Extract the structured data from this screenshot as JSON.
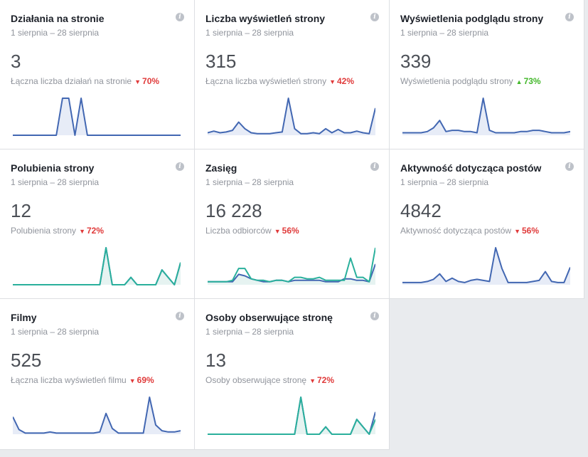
{
  "cards": [
    {
      "title": "Działania na stronie",
      "date": "1 sierpnia – 28 sierpnia",
      "value": "3",
      "subtitle": "Łączna liczba działań na stronie",
      "change": "70%",
      "direction": "down",
      "lines": [
        {
          "color": "#4267b2",
          "values": [
            0,
            0,
            0,
            0,
            0,
            0,
            0,
            0,
            1,
            1,
            0,
            1,
            0,
            0,
            0,
            0,
            0,
            0,
            0,
            0,
            0,
            0,
            0,
            0,
            0,
            0,
            0,
            0
          ]
        }
      ],
      "fill": "#e7ecf7"
    },
    {
      "title": "Liczba wyświetleń strony",
      "date": "1 sierpnia – 28 sierpnia",
      "value": "315",
      "subtitle": "Łączna liczba wyświetleń strony",
      "change": "42%",
      "direction": "down",
      "lines": [
        {
          "color": "#4267b2",
          "values": [
            3,
            5,
            3,
            4,
            6,
            16,
            8,
            3,
            2,
            2,
            2,
            3,
            4,
            45,
            8,
            2,
            2,
            3,
            2,
            8,
            3,
            7,
            3,
            3,
            5,
            3,
            2,
            33
          ]
        }
      ],
      "fill": "#e7ecf7"
    },
    {
      "title": "Wyświetlenia podglądu strony",
      "date": "1 sierpnia – 28 sierpnia",
      "value": "339",
      "subtitle": "Wyświetlenia podglądu strony",
      "change": "73%",
      "direction": "up",
      "lines": [
        {
          "color": "#4267b2",
          "values": [
            2,
            2,
            2,
            2,
            3,
            6,
            12,
            3,
            4,
            4,
            3,
            3,
            2,
            30,
            4,
            2,
            2,
            2,
            2,
            3,
            3,
            4,
            4,
            3,
            2,
            2,
            2,
            3
          ]
        }
      ],
      "fill": "#e7ecf7"
    },
    {
      "title": "Polubienia strony",
      "date": "1 sierpnia – 28 sierpnia",
      "value": "12",
      "subtitle": "Polubienia strony",
      "change": "72%",
      "direction": "down",
      "lines": [
        {
          "color": "#4267b2",
          "values": [
            0,
            0,
            0,
            0,
            0,
            0,
            0,
            0,
            0,
            0,
            0,
            0,
            0,
            0,
            0,
            5,
            0,
            0,
            0,
            1,
            0,
            0,
            0,
            0,
            2,
            1,
            0,
            3
          ]
        },
        {
          "color": "#2ab09c",
          "values": [
            0,
            0,
            0,
            0,
            0,
            0,
            0,
            0,
            0,
            0,
            0,
            0,
            0,
            0,
            0,
            5,
            0,
            0,
            0,
            1,
            0,
            0,
            0,
            0,
            2,
            1,
            0,
            3
          ]
        }
      ],
      "fill": "#e6f3f1"
    },
    {
      "title": "Zasięg",
      "date": "1 sierpnia – 28 sierpnia",
      "value": "16 228",
      "subtitle": "Liczba odbiorców",
      "change": "56%",
      "direction": "down",
      "lines": [
        {
          "color": "#4267b2",
          "values": [
            2,
            2,
            2,
            2,
            2,
            7,
            6,
            4,
            3,
            2,
            2,
            3,
            3,
            2,
            3,
            3,
            3,
            3,
            3,
            2,
            2,
            2,
            4,
            4,
            3,
            3,
            2,
            14
          ]
        },
        {
          "color": "#2ab09c",
          "values": [
            2,
            2,
            2,
            2,
            3,
            11,
            11,
            4,
            3,
            3,
            2,
            3,
            3,
            2,
            5,
            5,
            4,
            4,
            5,
            3,
            3,
            3,
            3,
            18,
            5,
            5,
            2,
            25
          ]
        }
      ],
      "fill": "#e6f3f1"
    },
    {
      "title": "Aktywność dotycząca postów",
      "date": "1 sierpnia – 28 sierpnia",
      "value": "4842",
      "subtitle": "Aktywność dotycząca postów",
      "change": "56%",
      "direction": "down",
      "lines": [
        {
          "color": "#4267b2",
          "values": [
            2,
            2,
            2,
            2,
            3,
            5,
            10,
            3,
            6,
            3,
            2,
            4,
            5,
            4,
            3,
            34,
            15,
            2,
            2,
            2,
            2,
            3,
            4,
            12,
            3,
            2,
            2,
            16
          ]
        }
      ],
      "fill": "#e7ecf7"
    },
    {
      "title": "Filmy",
      "date": "1 sierpnia – 28 sierpnia",
      "value": "525",
      "subtitle": "Łączna liczba wyświetleń filmu",
      "change": "69%",
      "direction": "down",
      "lines": [
        {
          "color": "#4267b2",
          "values": [
            15,
            4,
            1,
            1,
            1,
            1,
            2,
            1,
            1,
            1,
            1,
            1,
            1,
            1,
            2,
            18,
            5,
            1,
            1,
            1,
            1,
            1,
            32,
            8,
            3,
            2,
            2,
            3
          ]
        }
      ],
      "fill": "#e7ecf7"
    },
    {
      "title": "Osoby obserwujące stronę",
      "date": "1 sierpnia – 28 sierpnia",
      "value": "13",
      "subtitle": "Osoby obserwujące stronę",
      "change": "72%",
      "direction": "down",
      "lines": [
        {
          "color": "#4267b2",
          "values": [
            0,
            0,
            0,
            0,
            0,
            0,
            0,
            0,
            0,
            0,
            0,
            0,
            0,
            0,
            0,
            5,
            0,
            0,
            0,
            1,
            0,
            0,
            0,
            0,
            2,
            1,
            0,
            3
          ]
        },
        {
          "color": "#2ab09c",
          "values": [
            0,
            0,
            0,
            0,
            0,
            0,
            0,
            0,
            0,
            0,
            0,
            0,
            0,
            0,
            0,
            5,
            0,
            0,
            0,
            1,
            0,
            0,
            0,
            0,
            2,
            1,
            0,
            2
          ]
        }
      ],
      "fill": "#e6f3f1"
    }
  ],
  "info_icon_glyph": "i"
}
